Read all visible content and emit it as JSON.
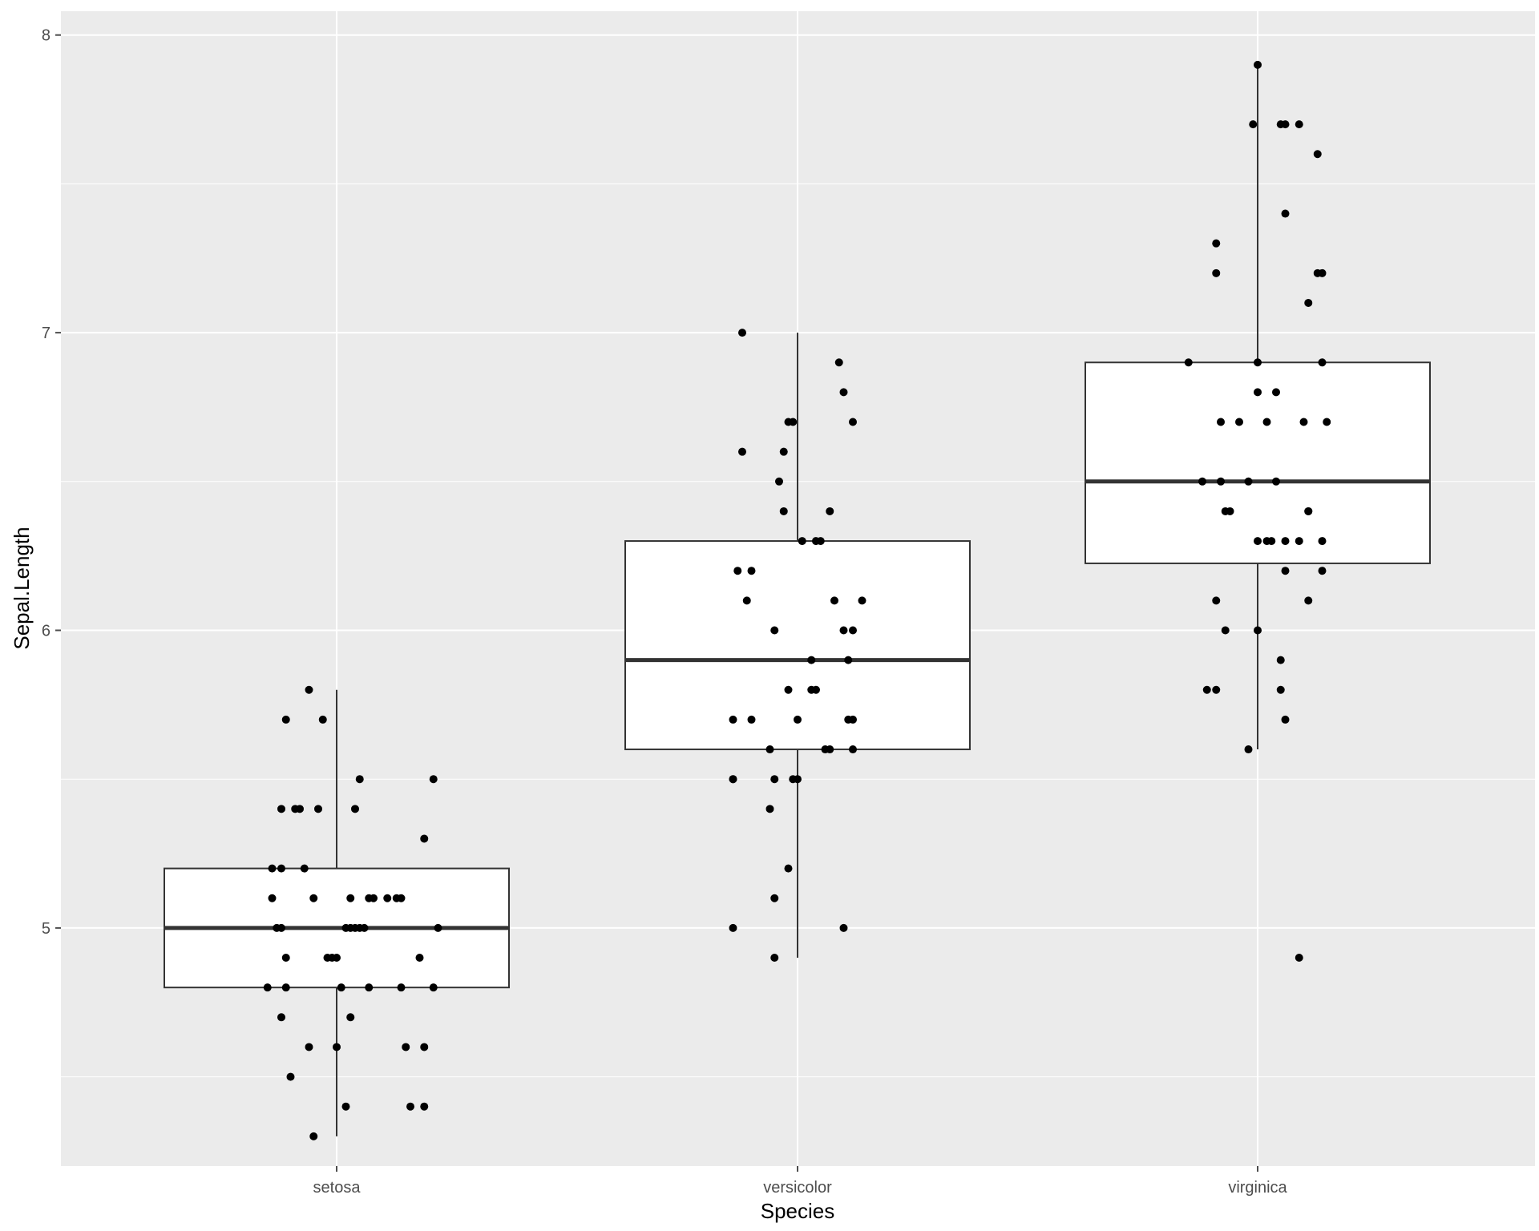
{
  "chart_data": {
    "type": "boxplot",
    "title": "",
    "xlabel": "Species",
    "ylabel": "Sepal.Length",
    "ylim": [
      4.2,
      8.08
    ],
    "y_ticks": [
      5,
      6,
      7,
      8
    ],
    "y_minor_ticks": [
      4.5,
      5.5,
      6.5,
      7.5
    ],
    "grid": true,
    "legend": "none",
    "colors": {
      "panel": "#ebebeb",
      "grid": "#ffffff",
      "box_fill": "#ffffff",
      "box_line": "#333333",
      "points": "#000000",
      "ticks": "#4d4d4d"
    },
    "categories": [
      "setosa",
      "versicolor",
      "virginica"
    ],
    "boxes": [
      {
        "name": "setosa",
        "min": 4.3,
        "q1": 4.8,
        "median": 5.0,
        "q3": 5.2,
        "max": 5.8
      },
      {
        "name": "versicolor",
        "min": 4.9,
        "q1": 5.6,
        "median": 5.9,
        "q3": 6.3,
        "max": 7.0
      },
      {
        "name": "virginica",
        "min": 5.6,
        "q1": 6.225,
        "median": 6.5,
        "q3": 6.9,
        "max": 7.9,
        "outliers": [
          4.9
        ]
      }
    ],
    "points": [
      [
        [
          -0.05,
          4.3
        ],
        [
          0.02,
          4.4
        ],
        [
          0.16,
          4.4
        ],
        [
          0.19,
          4.4
        ],
        [
          -0.1,
          4.5
        ],
        [
          -0.06,
          4.6
        ],
        [
          0.0,
          4.6
        ],
        [
          0.15,
          4.6
        ],
        [
          0.19,
          4.6
        ],
        [
          -0.12,
          4.7
        ],
        [
          0.03,
          4.7
        ],
        [
          -0.15,
          4.8
        ],
        [
          -0.11,
          4.8
        ],
        [
          0.01,
          4.8
        ],
        [
          0.07,
          4.8
        ],
        [
          0.14,
          4.8
        ],
        [
          0.21,
          4.8
        ],
        [
          -0.11,
          4.9
        ],
        [
          -0.01,
          4.9
        ],
        [
          -0.02,
          4.9
        ],
        [
          0.0,
          4.9
        ],
        [
          0.18,
          4.9
        ],
        [
          -0.13,
          5.0
        ],
        [
          -0.12,
          5.0
        ],
        [
          0.02,
          5.0
        ],
        [
          0.03,
          5.0
        ],
        [
          0.04,
          5.0
        ],
        [
          0.05,
          5.0
        ],
        [
          0.06,
          5.0
        ],
        [
          0.22,
          5.0
        ],
        [
          -0.14,
          5.1
        ],
        [
          -0.05,
          5.1
        ],
        [
          0.03,
          5.1
        ],
        [
          0.07,
          5.1
        ],
        [
          0.08,
          5.1
        ],
        [
          0.11,
          5.1
        ],
        [
          0.13,
          5.1
        ],
        [
          0.14,
          5.1
        ],
        [
          -0.14,
          5.2
        ],
        [
          -0.12,
          5.2
        ],
        [
          -0.07,
          5.2
        ],
        [
          0.19,
          5.3
        ],
        [
          -0.12,
          5.4
        ],
        [
          -0.09,
          5.4
        ],
        [
          -0.08,
          5.4
        ],
        [
          -0.04,
          5.4
        ],
        [
          0.04,
          5.4
        ],
        [
          0.05,
          5.5
        ],
        [
          0.21,
          5.5
        ],
        [
          -0.11,
          5.7
        ],
        [
          -0.03,
          5.7
        ],
        [
          -0.06,
          5.8
        ]
      ],
      [
        [
          -0.05,
          4.9
        ],
        [
          -0.14,
          5.0
        ],
        [
          0.1,
          5.0
        ],
        [
          -0.05,
          5.1
        ],
        [
          -0.02,
          5.2
        ],
        [
          -0.06,
          5.4
        ],
        [
          -0.14,
          5.5
        ],
        [
          -0.14,
          5.5
        ],
        [
          -0.05,
          5.5
        ],
        [
          -0.01,
          5.5
        ],
        [
          0.0,
          5.5
        ],
        [
          -0.06,
          5.6
        ],
        [
          0.06,
          5.6
        ],
        [
          0.07,
          5.6
        ],
        [
          0.12,
          5.6
        ],
        [
          -0.14,
          5.7
        ],
        [
          -0.1,
          5.7
        ],
        [
          0.0,
          5.7
        ],
        [
          0.11,
          5.7
        ],
        [
          0.12,
          5.7
        ],
        [
          -0.02,
          5.8
        ],
        [
          0.04,
          5.8
        ],
        [
          0.03,
          5.8
        ],
        [
          0.03,
          5.9
        ],
        [
          0.11,
          5.9
        ],
        [
          -0.05,
          6.0
        ],
        [
          0.1,
          6.0
        ],
        [
          0.12,
          6.0
        ],
        [
          -0.11,
          6.1
        ],
        [
          0.08,
          6.1
        ],
        [
          0.14,
          6.1
        ],
        [
          -0.13,
          6.2
        ],
        [
          -0.1,
          6.2
        ],
        [
          0.01,
          6.3
        ],
        [
          0.04,
          6.3
        ],
        [
          0.05,
          6.3
        ],
        [
          0.07,
          6.4
        ],
        [
          -0.03,
          6.4
        ],
        [
          -0.04,
          6.5
        ],
        [
          -0.12,
          6.6
        ],
        [
          -0.03,
          6.6
        ],
        [
          -0.02,
          6.7
        ],
        [
          -0.01,
          6.7
        ],
        [
          0.12,
          6.7
        ],
        [
          0.1,
          6.8
        ],
        [
          0.09,
          6.9
        ],
        [
          -0.12,
          7.0
        ]
      ],
      [
        [
          0.09,
          4.9
        ],
        [
          -0.02,
          5.6
        ],
        [
          0.06,
          5.7
        ],
        [
          0.05,
          5.8
        ],
        [
          -0.11,
          5.8
        ],
        [
          -0.09,
          5.8
        ],
        [
          0.05,
          5.9
        ],
        [
          -0.07,
          6.0
        ],
        [
          0.0,
          6.0
        ],
        [
          -0.09,
          6.1
        ],
        [
          0.11,
          6.1
        ],
        [
          0.14,
          6.2
        ],
        [
          0.06,
          6.2
        ],
        [
          0.02,
          6.3
        ],
        [
          0.03,
          6.3
        ],
        [
          0.06,
          6.3
        ],
        [
          0.09,
          6.3
        ],
        [
          0.14,
          6.3
        ],
        [
          0.0,
          6.3
        ],
        [
          -0.06,
          6.4
        ],
        [
          -0.07,
          6.4
        ],
        [
          0.11,
          6.4
        ],
        [
          0.11,
          6.4
        ],
        [
          -0.12,
          6.5
        ],
        [
          -0.08,
          6.5
        ],
        [
          -0.02,
          6.5
        ],
        [
          0.04,
          6.5
        ],
        [
          -0.04,
          6.7
        ],
        [
          0.02,
          6.7
        ],
        [
          0.1,
          6.7
        ],
        [
          0.15,
          6.7
        ],
        [
          -0.08,
          6.7
        ],
        [
          0.04,
          6.8
        ],
        [
          0.0,
          6.8
        ],
        [
          -0.15,
          6.9
        ],
        [
          0.0,
          6.9
        ],
        [
          0.14,
          6.9
        ],
        [
          0.11,
          7.1
        ],
        [
          -0.09,
          7.2
        ],
        [
          0.13,
          7.2
        ],
        [
          0.14,
          7.2
        ],
        [
          -0.09,
          7.3
        ],
        [
          0.06,
          7.4
        ],
        [
          0.13,
          7.6
        ],
        [
          -0.01,
          7.7
        ],
        [
          0.05,
          7.7
        ],
        [
          0.06,
          7.7
        ],
        [
          0.09,
          7.7
        ],
        [
          0.0,
          7.9
        ]
      ]
    ]
  }
}
